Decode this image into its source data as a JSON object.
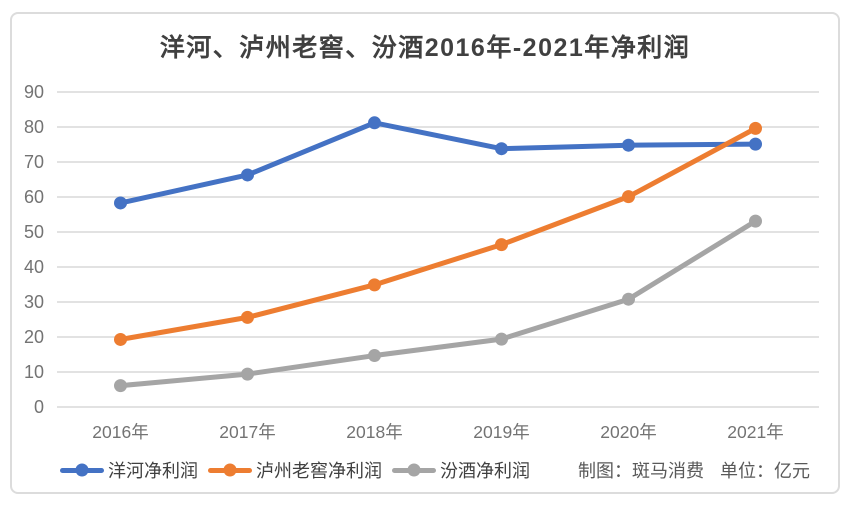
{
  "chart": {
    "title": "洋河、泸州老窖、汾酒2016年-2021年净利润",
    "credit": "制图：斑马消费",
    "unit": "单位：亿元"
  },
  "chart_data": {
    "type": "line",
    "title": "洋河、泸州老窖、汾酒2016年-2021年净利润",
    "categories": [
      "2016年",
      "2017年",
      "2018年",
      "2019年",
      "2020年",
      "2021年"
    ],
    "series": [
      {
        "name": "洋河净利润",
        "color": "#4472C4",
        "values": [
          58.3,
          66.3,
          81.2,
          73.8,
          74.8,
          75.1
        ]
      },
      {
        "name": "泸州老窖净利润",
        "color": "#ED7D31",
        "values": [
          19.3,
          25.6,
          34.9,
          46.4,
          60.1,
          79.6
        ]
      },
      {
        "name": "汾酒净利润",
        "color": "#A5A5A5",
        "values": [
          6.1,
          9.4,
          14.7,
          19.4,
          30.8,
          53.1
        ]
      }
    ],
    "xlabel": "",
    "ylabel": "",
    "ylim": [
      0,
      90
    ],
    "ytick_step": 10,
    "grid": true,
    "legend_position": "bottom",
    "unit": "亿元"
  },
  "colors": {
    "grid_line": "#d9d9d9",
    "card_border": "#dcdcdc",
    "title_text": "#404040",
    "axis_text": "#737373",
    "legend_text": "#404040",
    "note_text": "#595959"
  }
}
